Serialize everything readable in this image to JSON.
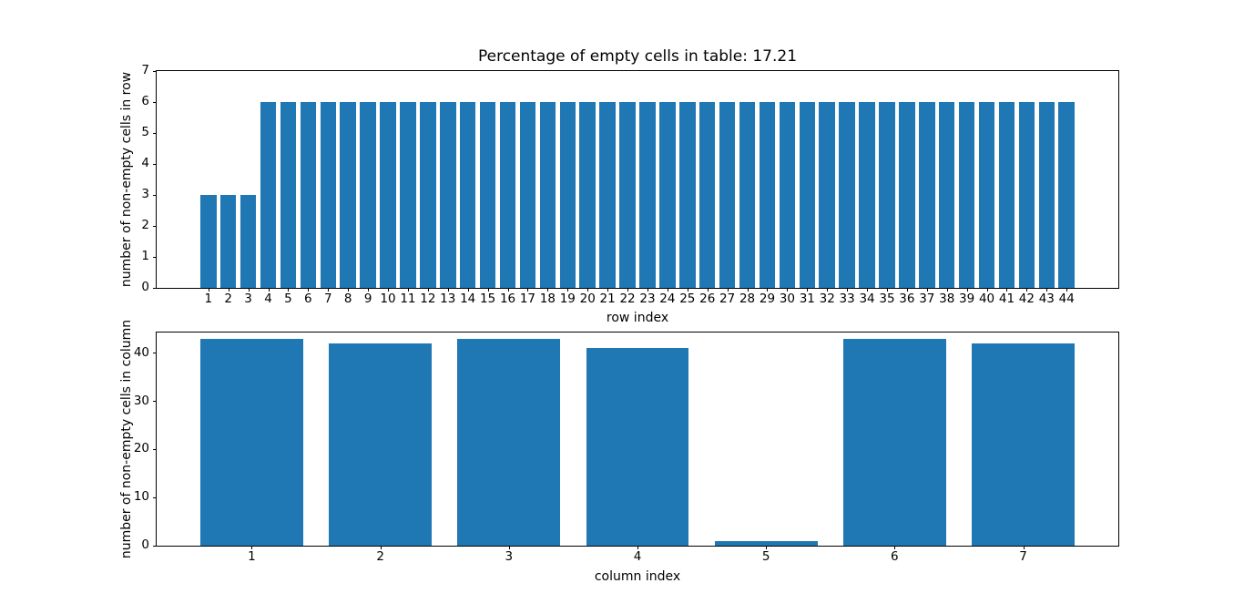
{
  "figure": {
    "background": "#ffffff",
    "bar_color": "#1f77b4",
    "spine_color": "#000000",
    "text_color": "#000000"
  },
  "chart_data": [
    {
      "type": "bar",
      "title": "Percentage of empty cells in table: 17.21",
      "xlabel": "row index",
      "ylabel": "number of non-empty cells in row",
      "categories": [
        1,
        2,
        3,
        4,
        5,
        6,
        7,
        8,
        9,
        10,
        11,
        12,
        13,
        14,
        15,
        16,
        17,
        18,
        19,
        20,
        21,
        22,
        23,
        24,
        25,
        26,
        27,
        28,
        29,
        30,
        31,
        32,
        33,
        34,
        35,
        36,
        37,
        38,
        39,
        40,
        41,
        42,
        43,
        44
      ],
      "values": [
        3,
        3,
        3,
        6,
        6,
        6,
        6,
        6,
        6,
        6,
        6,
        6,
        6,
        6,
        6,
        6,
        6,
        6,
        6,
        6,
        6,
        6,
        6,
        6,
        6,
        6,
        6,
        6,
        6,
        6,
        6,
        6,
        6,
        6,
        6,
        6,
        6,
        6,
        6,
        6,
        6,
        6,
        6,
        6
      ],
      "yticks": [
        0,
        1,
        2,
        3,
        4,
        5,
        6,
        7
      ],
      "ylim": [
        0,
        7
      ],
      "xlim": [
        -1.59,
        46.59
      ],
      "bar_width": 0.8,
      "grid": false,
      "legend": "none"
    },
    {
      "type": "bar",
      "title": "",
      "xlabel": "column index",
      "ylabel": "number of non-empty cells in column",
      "categories": [
        1,
        2,
        3,
        4,
        5,
        6,
        7
      ],
      "values": [
        43,
        42,
        43,
        41,
        1,
        43,
        42
      ],
      "yticks": [
        0,
        10,
        20,
        30,
        40
      ],
      "ylim": [
        0,
        44.3
      ],
      "xlim": [
        0.26,
        7.74
      ],
      "bar_width": 0.8,
      "grid": false,
      "legend": "none"
    }
  ]
}
